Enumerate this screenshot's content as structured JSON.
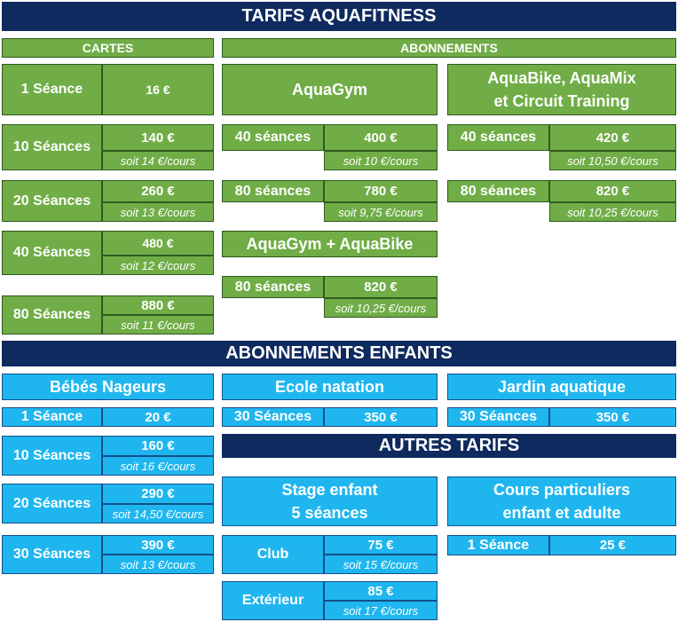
{
  "title": "TARIFS AQUAFITNESS",
  "cartes": {
    "header": "CARTES",
    "rows": [
      {
        "label": "1 Séance",
        "price": "16 €"
      },
      {
        "label": "10 Séances",
        "price": "140 €",
        "per": "soit 14 €/cours"
      },
      {
        "label": "20 Séances",
        "price": "260 €",
        "per": "soit 13 €/cours"
      },
      {
        "label": "40 Séances",
        "price": "480 €",
        "per": "soit 12 €/cours"
      },
      {
        "label": "80 Séances",
        "price": "880 €",
        "per": "soit 11 €/cours"
      }
    ]
  },
  "abonnements": {
    "header": "ABONNEMENTS",
    "aquagym": {
      "title": "AquaGym",
      "rows": [
        {
          "label": "40 séances",
          "price": "400 €",
          "per": "soit 10 €/cours"
        },
        {
          "label": "80 séances",
          "price": "780 €",
          "per": "soit 9,75 €/cours"
        }
      ]
    },
    "aquabike": {
      "title": "AquaBike, AquaMix\net Circuit Training",
      "rows": [
        {
          "label": "40 séances",
          "price": "420 €",
          "per": "soit 10,50 €/cours"
        },
        {
          "label": "80 séances",
          "price": "820 €",
          "per": "soit 10,25 €/cours"
        }
      ]
    },
    "combo": {
      "title": "AquaGym + AquaBike",
      "rows": [
        {
          "label": "80 séances",
          "price": "820 €",
          "per": "soit 10,25 €/cours"
        }
      ]
    }
  },
  "enfants": {
    "header": "ABONNEMENTS ENFANTS",
    "bebes": {
      "title": "Bébés Nageurs",
      "rows": [
        {
          "label": "1 Séance",
          "price": "20 €"
        },
        {
          "label": "10 Séances",
          "price": "160 €",
          "per": "soit 16 €/cours"
        },
        {
          "label": "20 Séances",
          "price": "290 €",
          "per": "soit 14,50 €/cours"
        },
        {
          "label": "30 Séances",
          "price": "390 €",
          "per": "soit 13 €/cours"
        }
      ]
    },
    "ecole": {
      "title": "Ecole natation",
      "rows": [
        {
          "label": "30 Séances",
          "price": "350 €"
        }
      ]
    },
    "jardin": {
      "title": "Jardin aquatique",
      "rows": [
        {
          "label": "30 Séances",
          "price": "350 €"
        }
      ]
    }
  },
  "autres": {
    "header": "AUTRES TARIFS",
    "stage": {
      "title": "Stage enfant\n5 séances",
      "rows": [
        {
          "label": "Club",
          "price": "75 €",
          "per": "soit 15 €/cours"
        },
        {
          "label": "Extérieur",
          "price": "85 €",
          "per": "soit 17 €/cours"
        }
      ]
    },
    "cours": {
      "title": "Cours particuliers\nenfant et adulte",
      "rows": [
        {
          "label": "1 Séance",
          "price": "25 €"
        }
      ]
    }
  },
  "colors": {
    "navy": "#0f2a5e",
    "green": "#70ad47",
    "blue": "#1fb6ef"
  }
}
